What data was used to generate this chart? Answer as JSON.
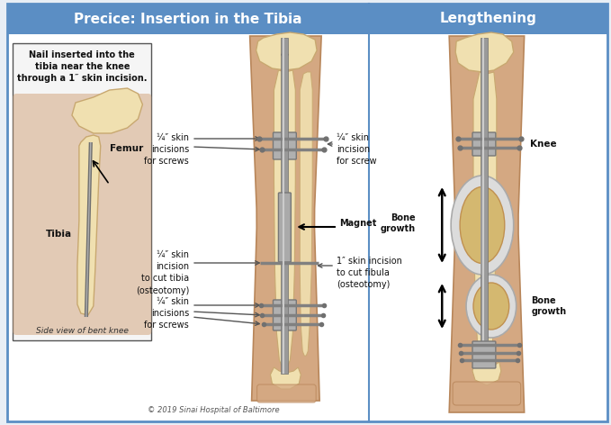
{
  "bg_color": "#e8eef5",
  "border_color": "#5b8ec4",
  "left_panel_header": "Precice: Insertion in the Tibia",
  "right_panel_header": "Lengthening",
  "header_bg": "#5b8ec4",
  "header_text_color": "#ffffff",
  "header_fontsize": 11,
  "body_bg": "#ffffff",
  "skin_light": "#d4a882",
  "skin_dark": "#b8865a",
  "bone_fill": "#f0e0b0",
  "bone_outline": "#c8a870",
  "nail_color": "#909090",
  "nail_highlight": "#c0c0c0",
  "screw_color": "#888888",
  "label_fontsize": 7.0,
  "bold_label_fontsize": 7.5,
  "copyright_text": "© 2019 Sinai Hospital of Baltimore",
  "inset_text": "Nail inserted into the\ntibia near the knee\nthrough a 1″ skin incision.",
  "inset_caption": "Side view of bent knee",
  "femur_label": "Femur",
  "tibia_label": "Tibia"
}
